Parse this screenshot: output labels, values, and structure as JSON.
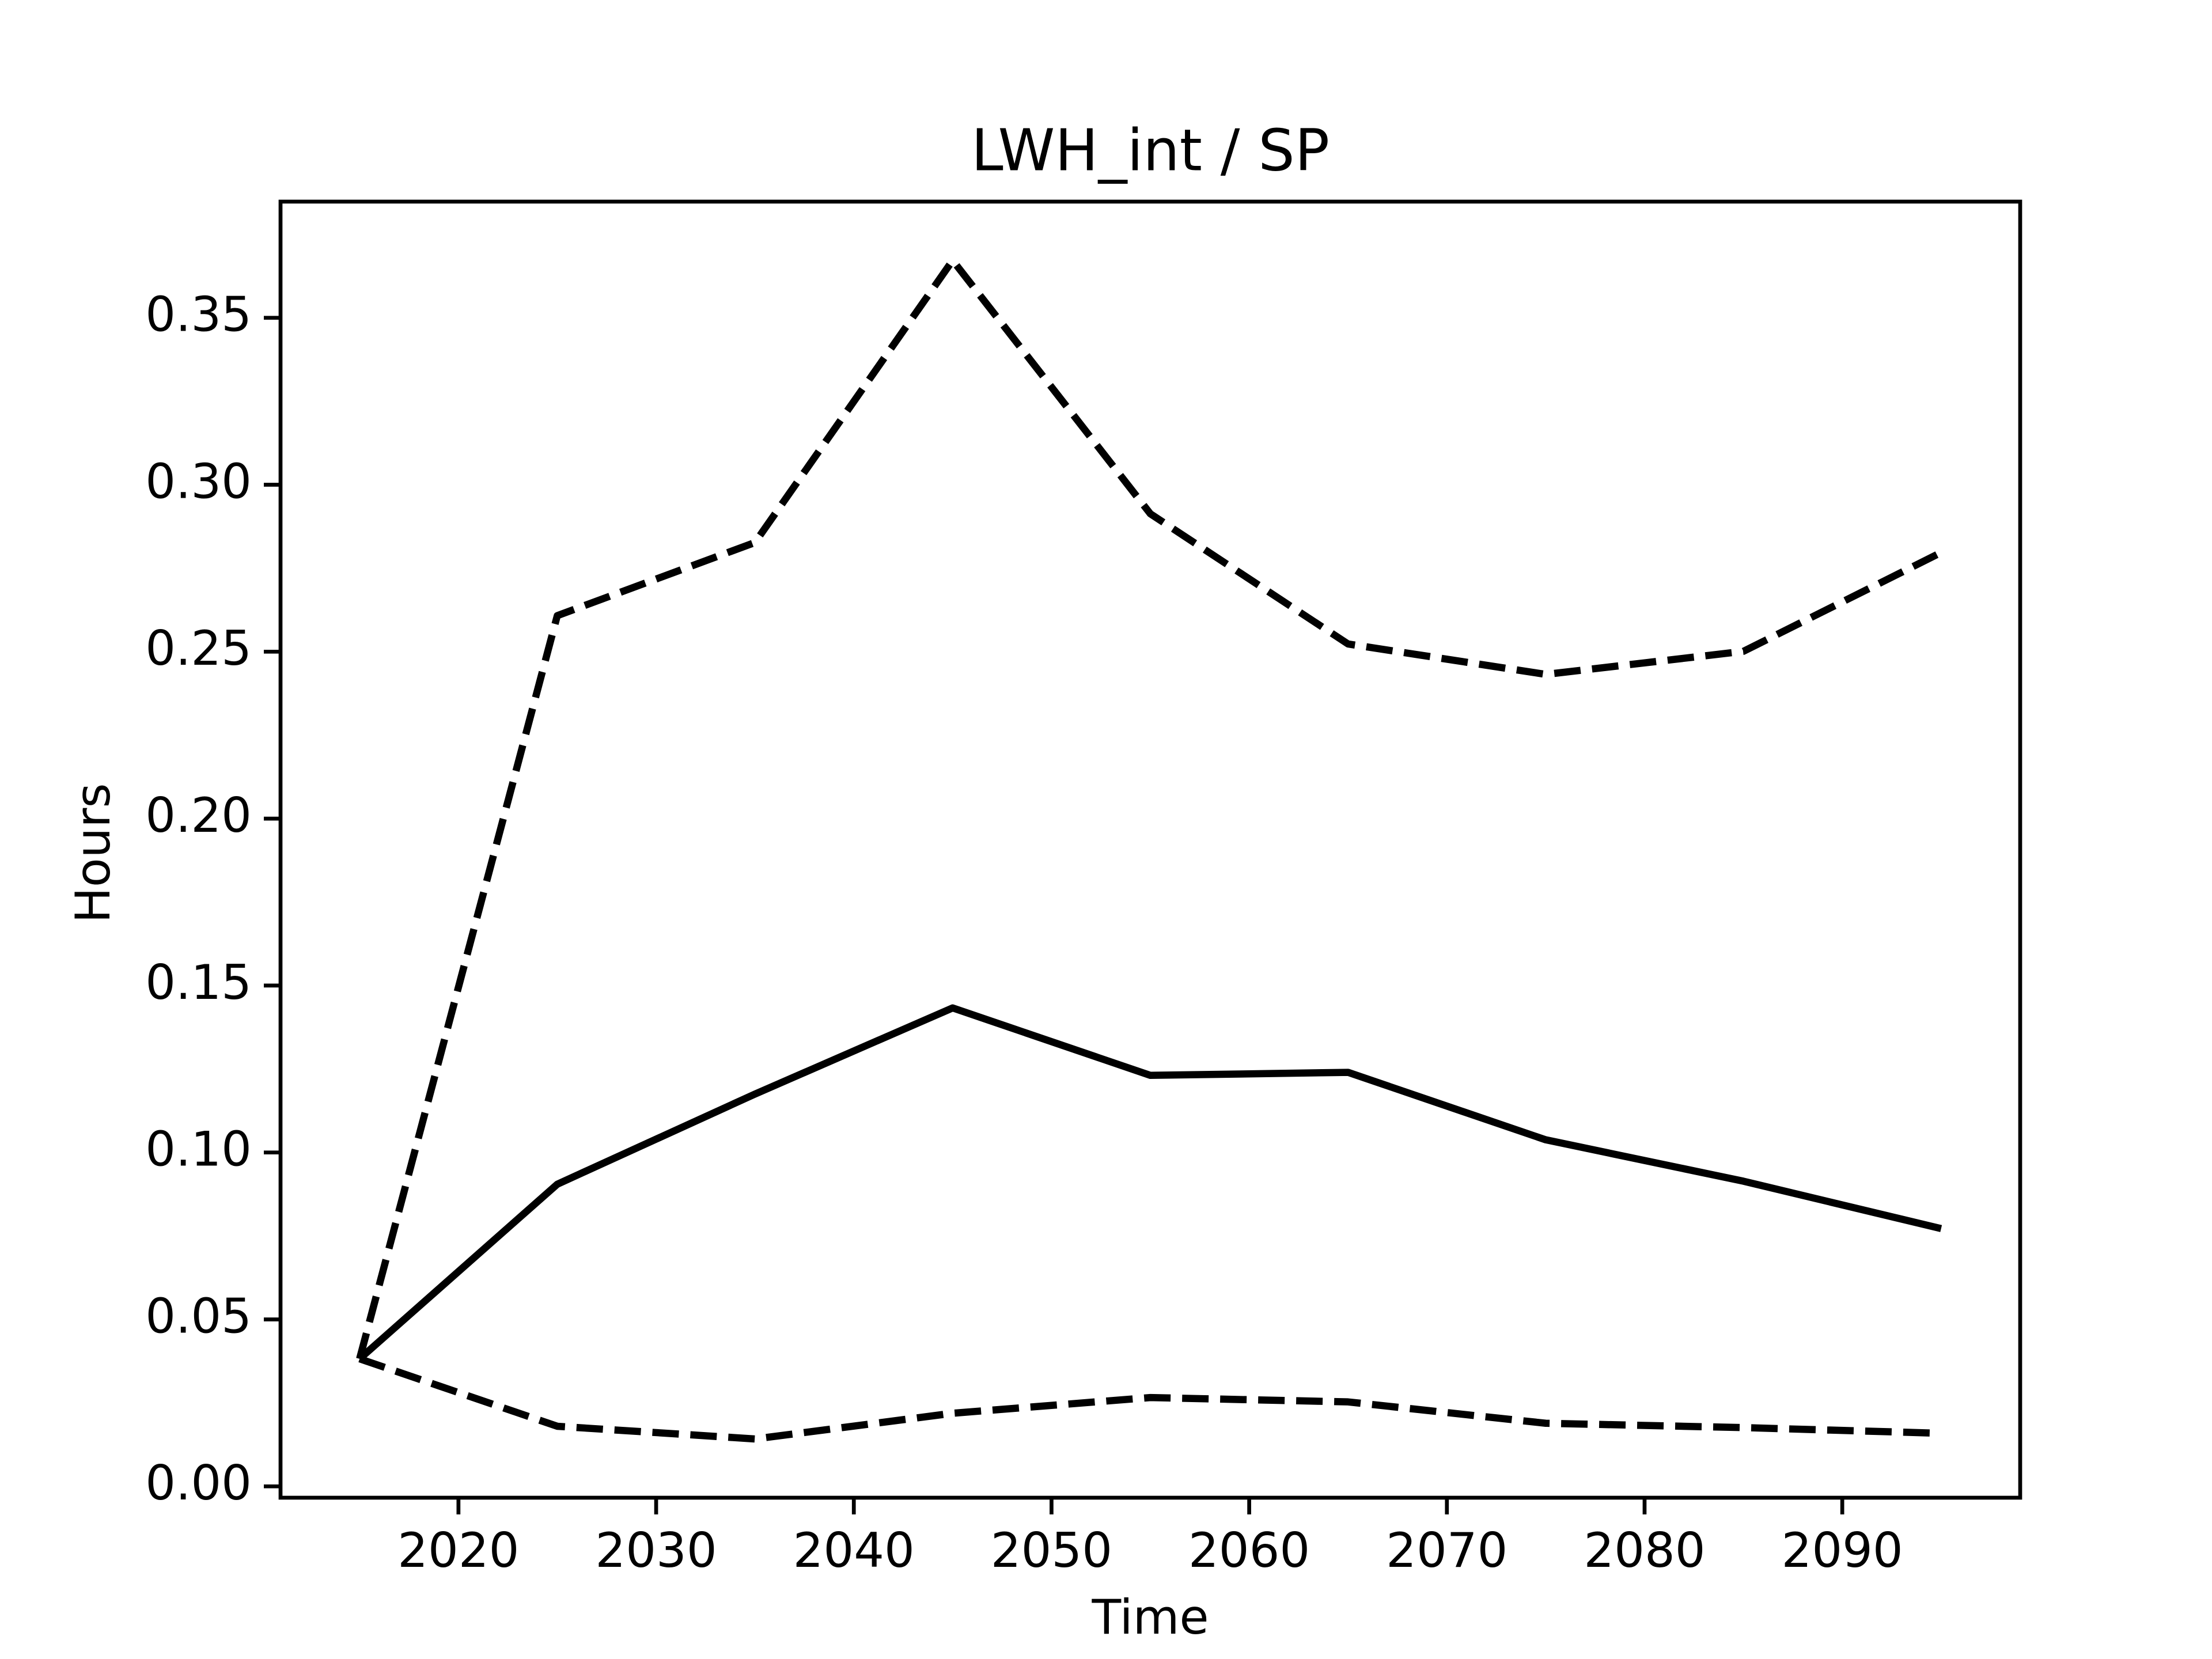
{
  "chart_data": {
    "type": "line",
    "title": "LWH_int / SP",
    "x_label": "Time",
    "y_label": "Hours",
    "x": [
      2015,
      2025,
      2035,
      2045,
      2055,
      2065,
      2075,
      2085,
      2095
    ],
    "series": [
      {
        "color": "#000000",
        "linestyle": "solid",
        "values": [
          0.0382,
          0.0905,
          0.1175,
          0.1433,
          0.1231,
          0.124,
          0.1038,
          0.0914,
          0.0772
        ]
      },
      {
        "color": "#000000",
        "linestyle": "dashed",
        "values": [
          0.0382,
          0.2608,
          0.2827,
          0.3672,
          0.2913,
          0.2523,
          0.2432,
          0.2501,
          0.2797
        ]
      },
      {
        "color": "#000000",
        "linestyle": "dashed",
        "values": [
          0.0382,
          0.018,
          0.0142,
          0.0219,
          0.0266,
          0.0253,
          0.0189,
          0.0176,
          0.0159
        ]
      }
    ],
    "xlim": [
      2011,
      2099
    ],
    "ylim": [
      -0.0034,
      0.3848
    ],
    "xticks": [
      2020,
      2030,
      2040,
      2050,
      2060,
      2070,
      2080,
      2090
    ],
    "yticks": [
      {
        "value": 0,
        "label": "0.00"
      },
      0.05,
      {
        "value": 0.1,
        "label": "0.10"
      },
      0.15,
      {
        "value": 0.2,
        "label": "0.20"
      },
      0.25,
      {
        "value": 0.3,
        "label": "0.30"
      },
      0.35
    ],
    "grid": false
  }
}
